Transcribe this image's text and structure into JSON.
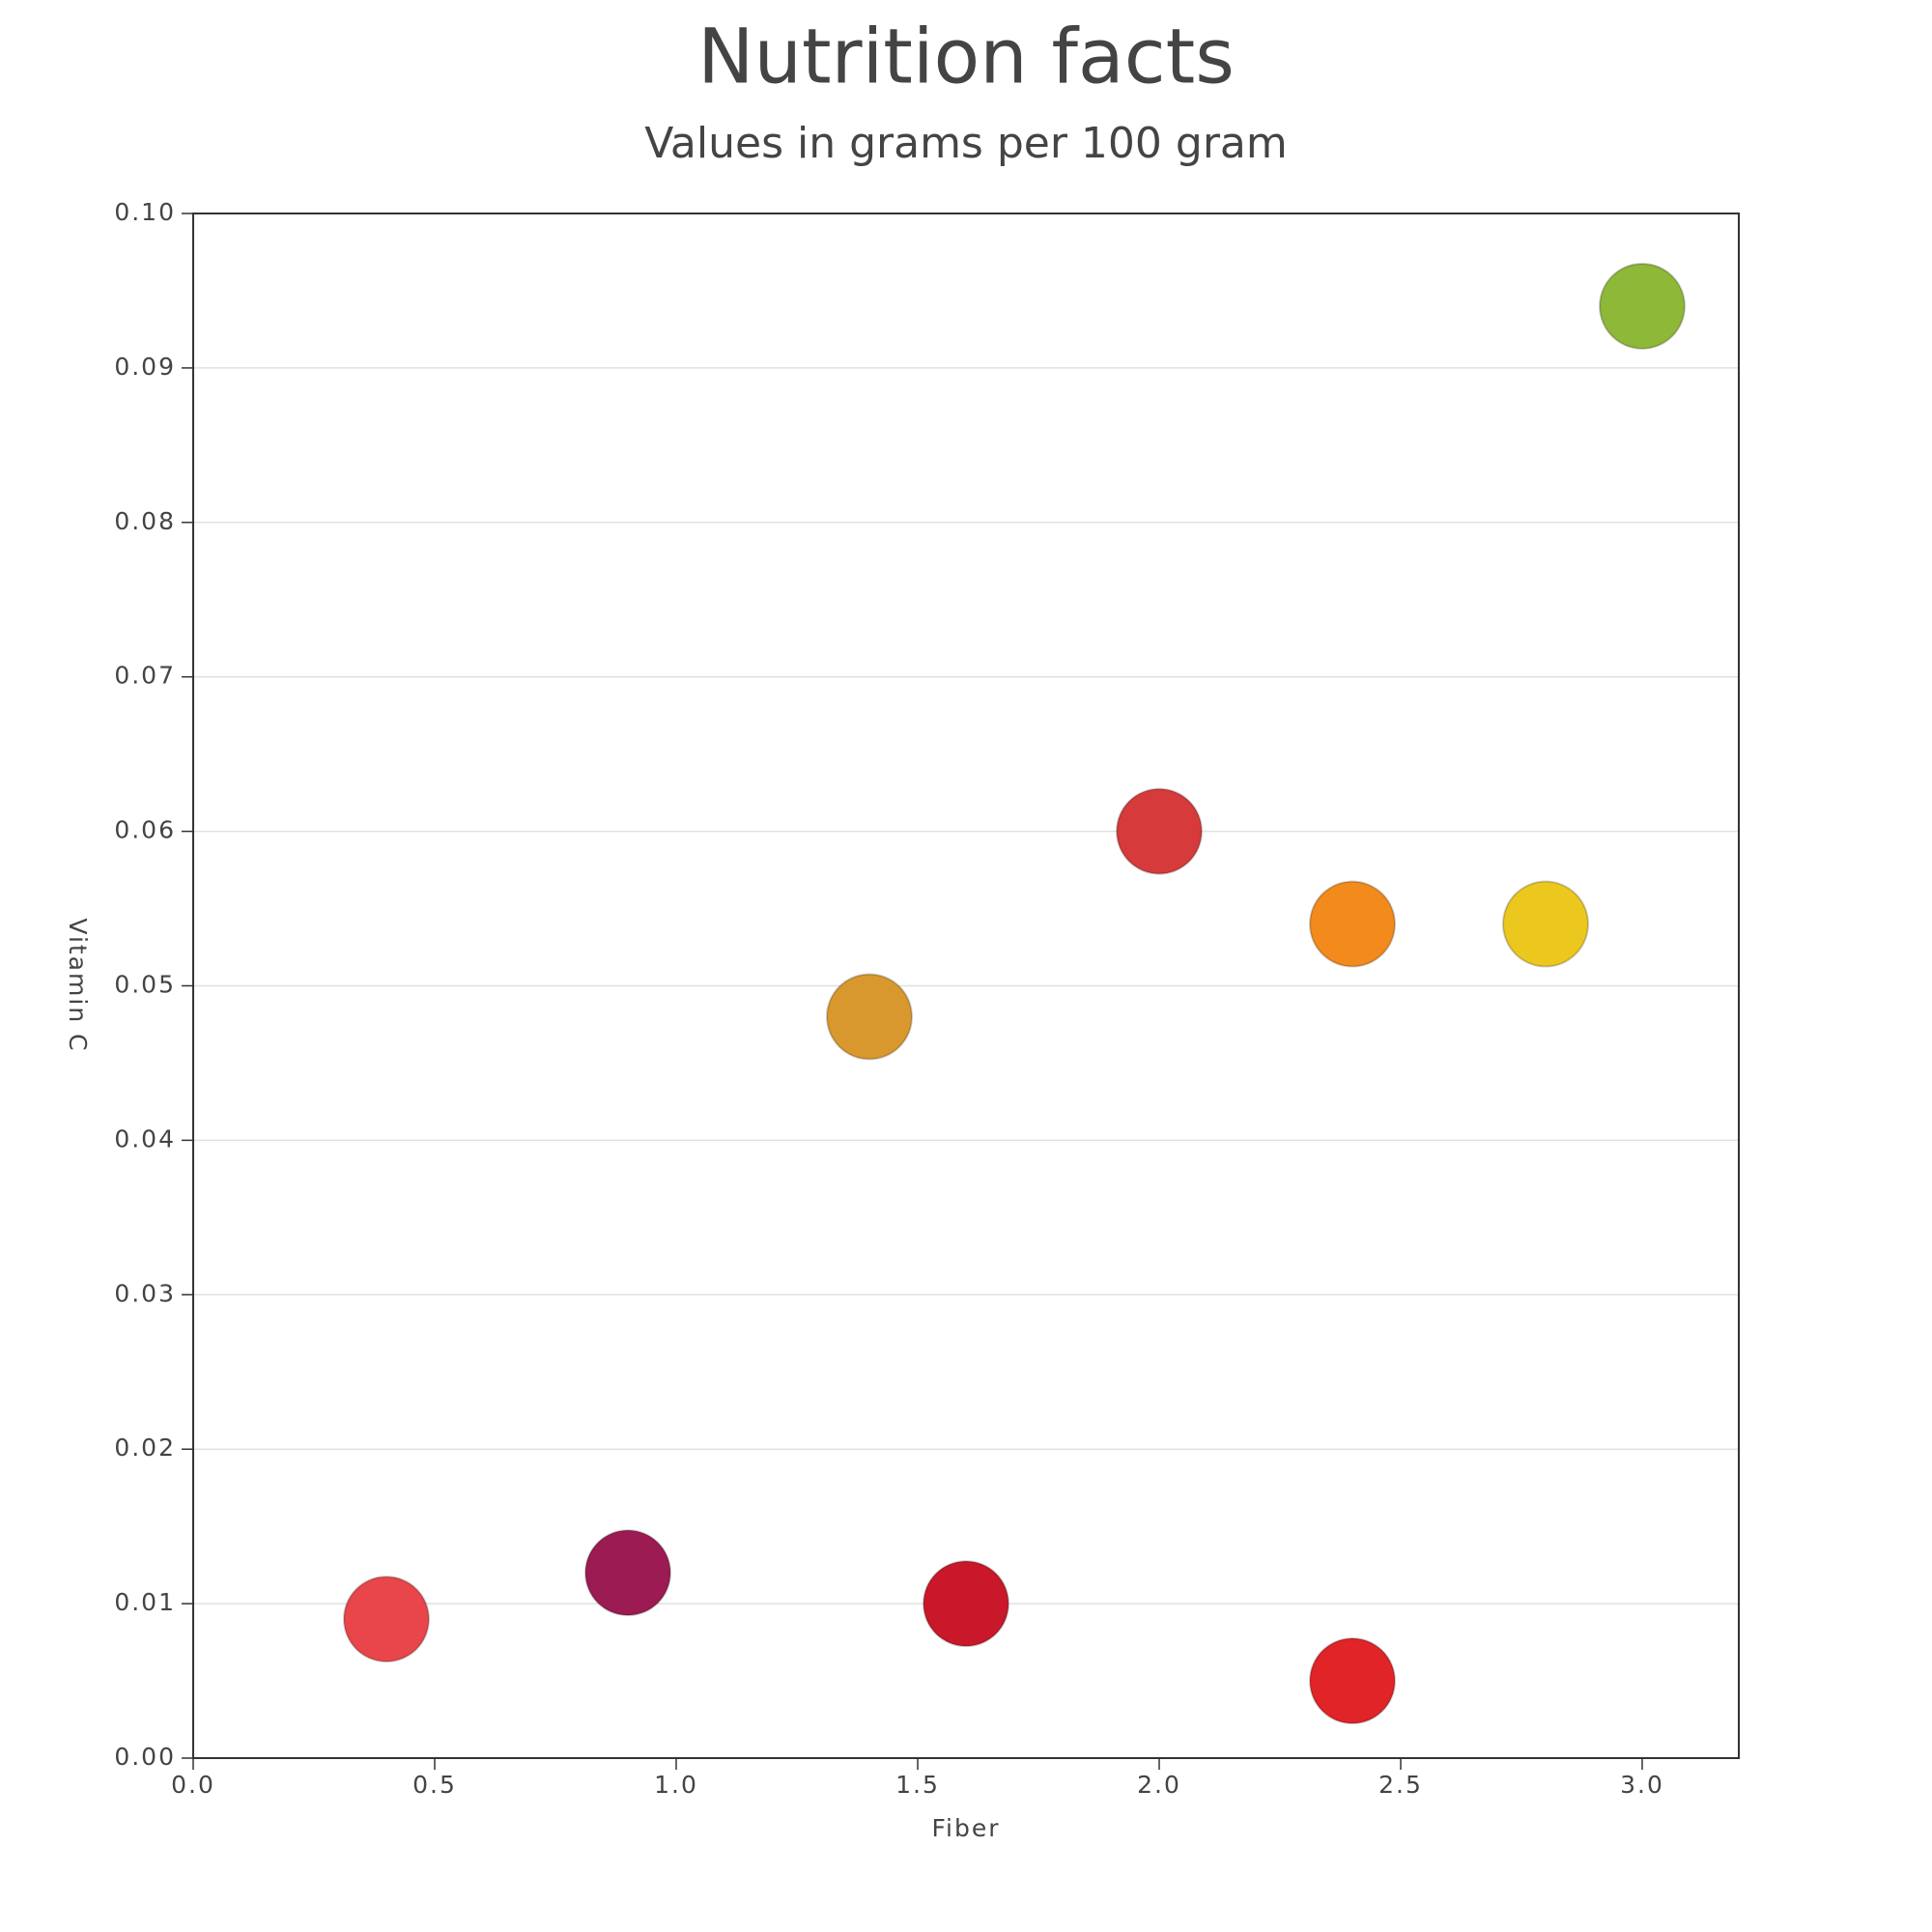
{
  "chart_data": {
    "type": "scatter",
    "title": "Nutrition facts",
    "subtitle": "Values in grams per 100 gram",
    "x_label": "Fiber",
    "y_label": "Vitamin C",
    "x": [
      0.4,
      0.9,
      1.4,
      1.6,
      2.0,
      2.4,
      2.8,
      2.4,
      3.0
    ],
    "values": [
      0.009,
      0.012,
      0.048,
      0.01,
      0.06,
      0.054,
      0.054,
      0.005,
      0.094
    ],
    "colors": [
      "#e8464a",
      "#9b1b52",
      "#d9982e",
      "#c8182a",
      "#d63a3a",
      "#f28a1c",
      "#ecc81e",
      "#e02428",
      "#8db838"
    ],
    "xlim": [
      0,
      3.2
    ],
    "xticks": [
      {
        "value": 0,
        "label": "0.0"
      },
      0.5,
      {
        "value": 1,
        "label": "1.0"
      },
      1.5,
      {
        "value": 2,
        "label": "2.0"
      },
      2.5,
      {
        "value": 3,
        "label": "3.0"
      }
    ],
    "ylim": [
      0,
      0.1
    ],
    "yticks": [
      {
        "value": 0,
        "label": "0.00"
      },
      0.01,
      0.02,
      0.03,
      0.04,
      0.05,
      0.06,
      0.07,
      0.08,
      0.09,
      {
        "value": 0.1,
        "label": "0.10"
      }
    ],
    "grid": true
  }
}
